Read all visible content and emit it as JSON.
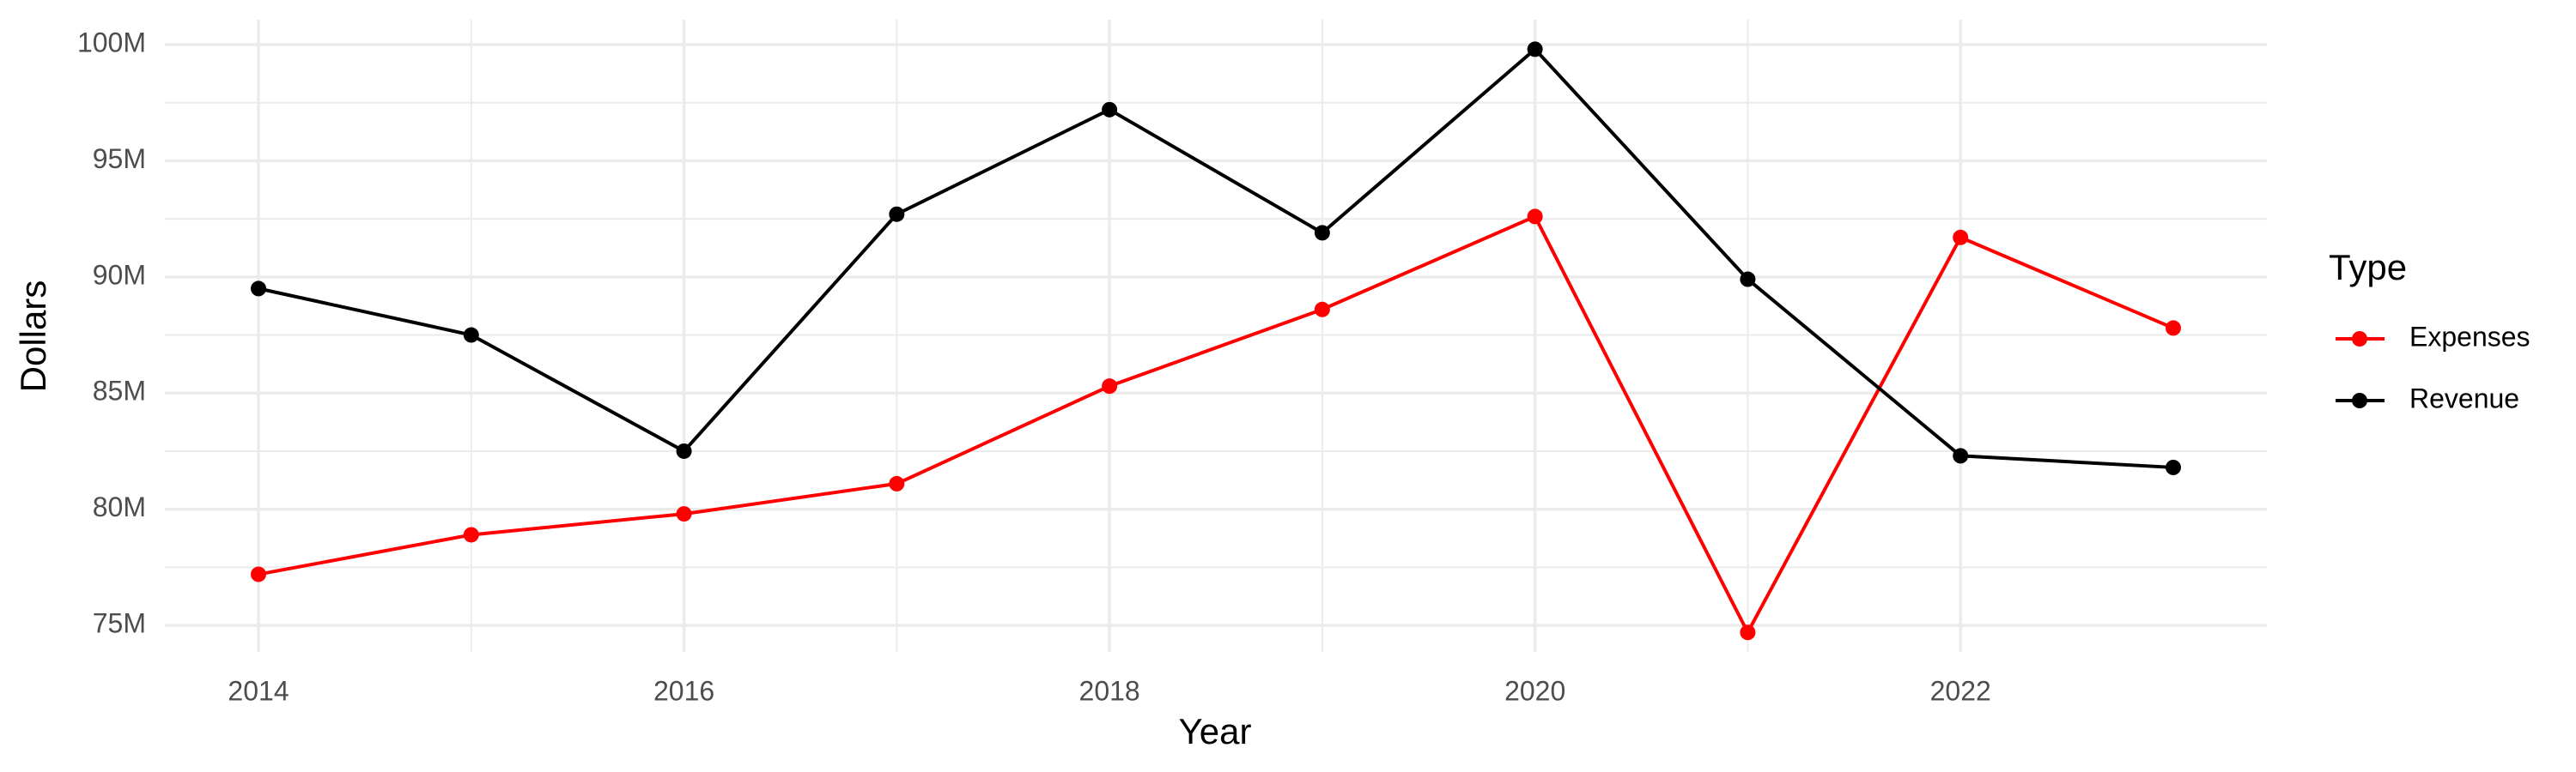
{
  "chart_data": {
    "type": "line",
    "x_label": "Year",
    "y_label": "Dollars",
    "legend_title": "Type",
    "legend": "right",
    "grid": true,
    "x": [
      2014,
      2015,
      2016,
      2017,
      2018,
      2019,
      2020,
      2021,
      2022,
      2023
    ],
    "series": [
      {
        "name": "Expenses",
        "color": "#ff0000",
        "values": [
          77200000,
          78900000,
          79800000,
          81100000,
          85300000,
          88600000,
          92600000,
          74700000,
          91700000,
          87800000
        ]
      },
      {
        "name": "Revenue",
        "color": "#000000",
        "values": [
          89500000,
          87500000,
          82500000,
          92700000,
          97200000,
          91900000,
          99800000,
          89900000,
          82300000,
          81800000
        ]
      }
    ],
    "xlim": [
      2013.56,
      2023.44
    ],
    "xticks": [
      2014,
      2016,
      2018,
      2020,
      2022
    ],
    "ylim": [
      73860000,
      101070000
    ],
    "yticks": [
      {
        "value": 75000000,
        "label": "75M"
      },
      {
        "value": 80000000,
        "label": "80M"
      },
      {
        "value": 85000000,
        "label": "85M"
      },
      {
        "value": 90000000,
        "label": "90M"
      },
      {
        "value": 95000000,
        "label": "95M"
      },
      {
        "value": 100000000,
        "label": "100M"
      }
    ]
  }
}
